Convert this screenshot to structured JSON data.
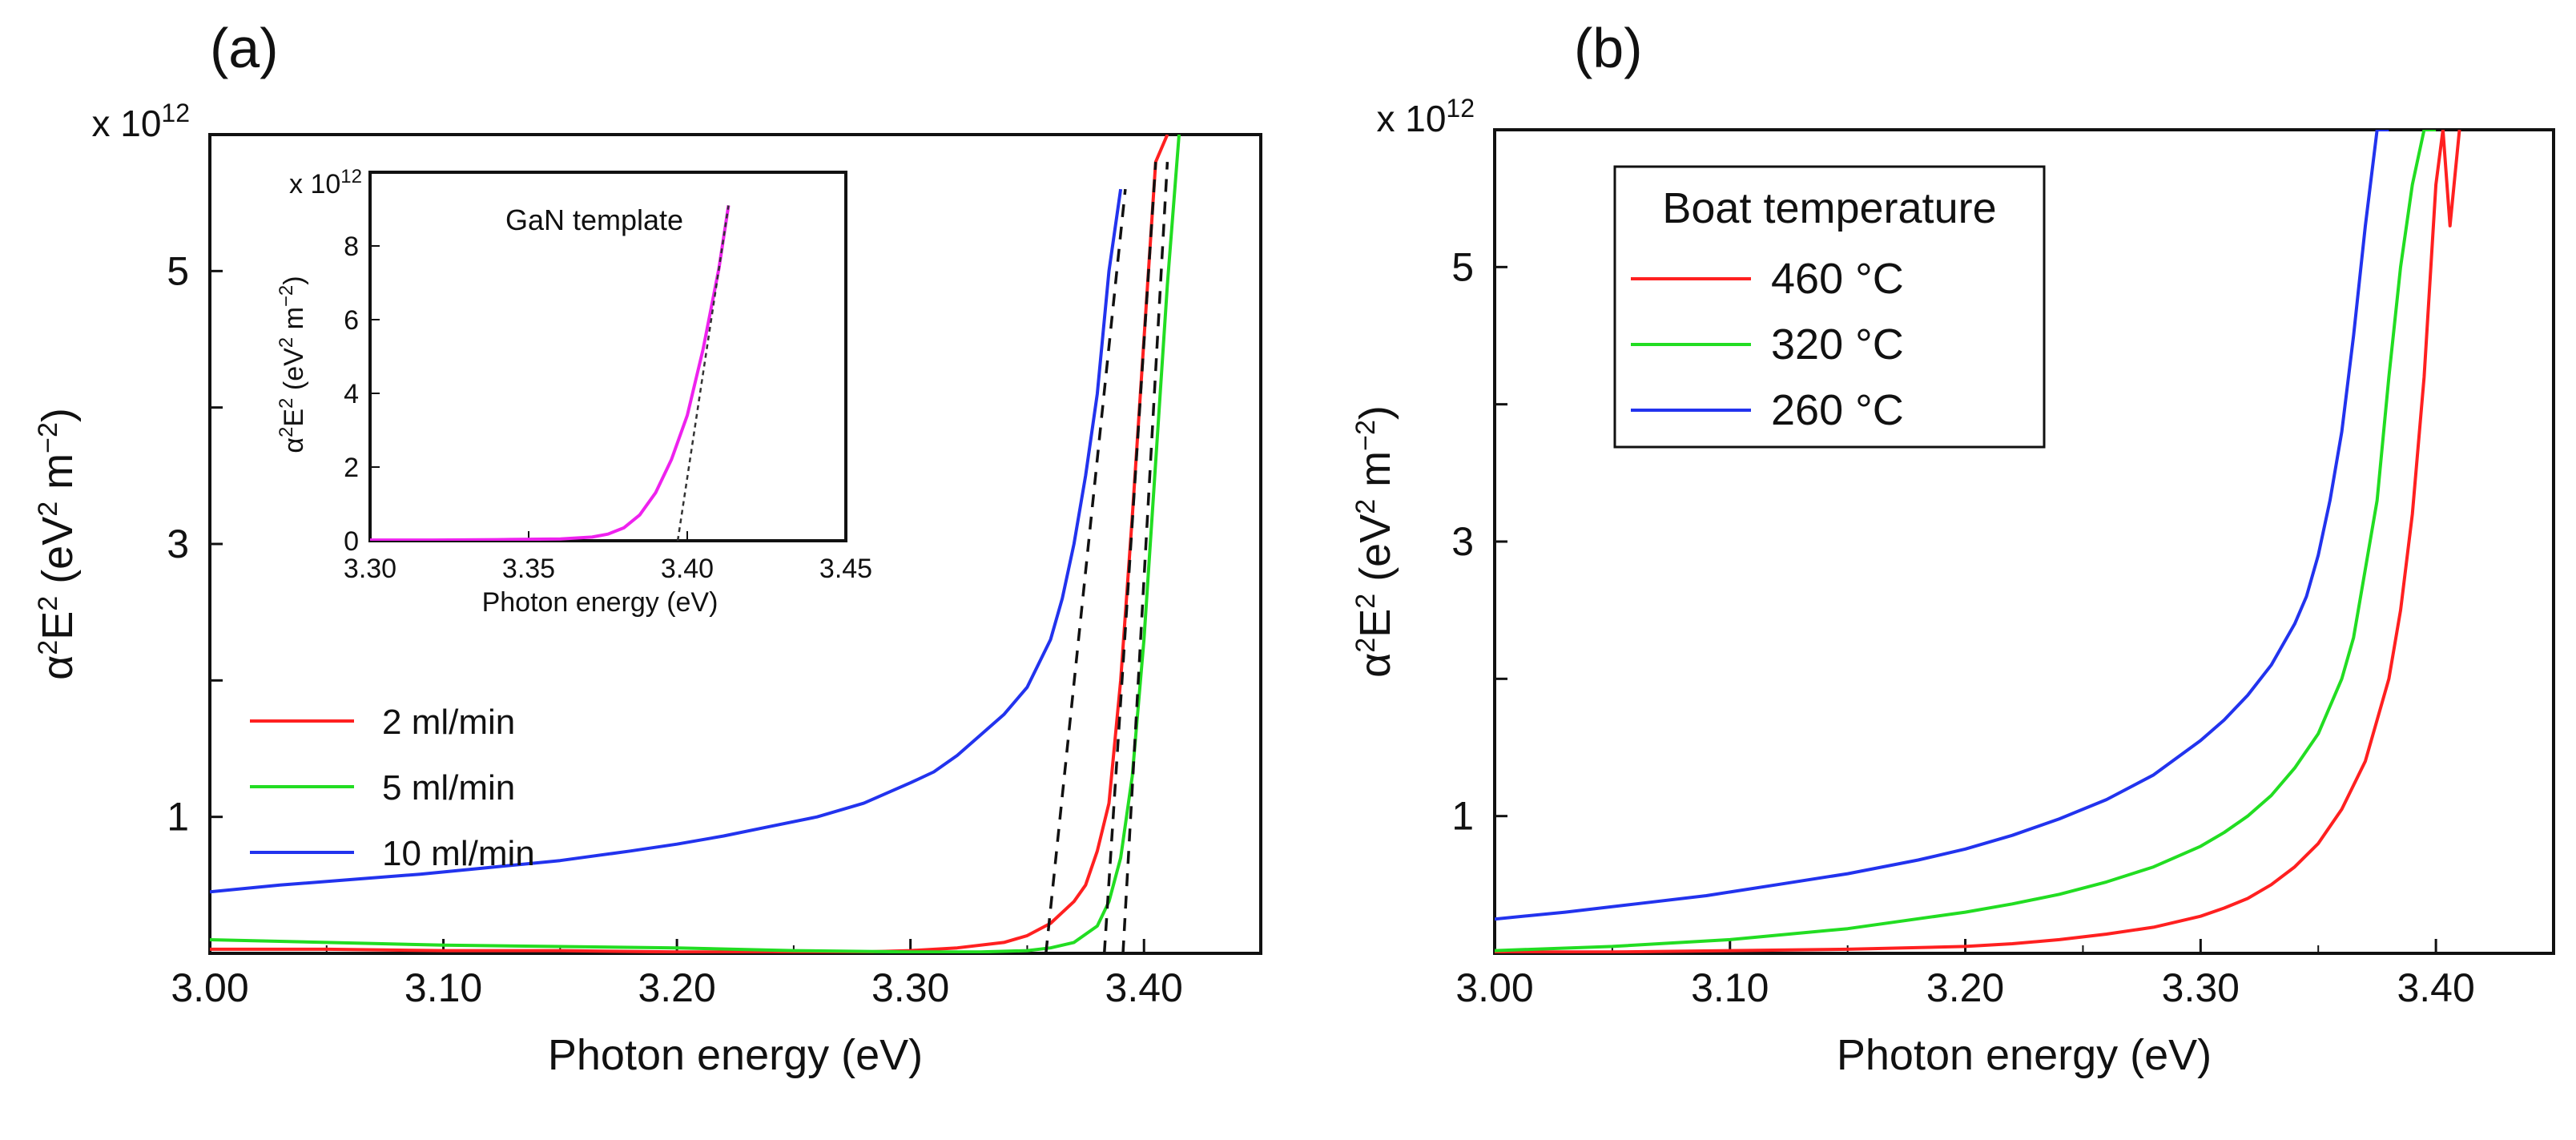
{
  "chart_data": [
    {
      "panel": "a",
      "type": "line",
      "panel_label": "(a)",
      "xlabel": "Photon energy (eV)",
      "ylabel": [
        "α",
        "2",
        "E",
        "2",
        " (eV",
        "2",
        " m",
        "−2",
        ")"
      ],
      "y_multiplier": {
        "base": "x 10",
        "exp": "12"
      },
      "xlim": [
        3.0,
        3.45
      ],
      "ylim": [
        0,
        6
      ],
      "xticks": [
        "3.00",
        "3.10",
        "3.20",
        "3.30",
        "3.40"
      ],
      "yticks": [
        "1",
        "3",
        "5"
      ],
      "legend": {
        "position": "lower-left",
        "entries": [
          "2 ml/min",
          "5 ml/min",
          "10 ml/min"
        ]
      },
      "series": [
        {
          "name": "2 ml/min",
          "color": "#ff2020",
          "x": [
            3.0,
            3.05,
            3.1,
            3.15,
            3.2,
            3.25,
            3.28,
            3.3,
            3.32,
            3.34,
            3.35,
            3.36,
            3.37,
            3.375,
            3.38,
            3.385,
            3.39,
            3.395,
            3.4,
            3.405,
            3.41
          ],
          "y": [
            0.03,
            0.03,
            0.02,
            0.02,
            0.01,
            0.01,
            0.01,
            0.02,
            0.04,
            0.08,
            0.13,
            0.22,
            0.38,
            0.5,
            0.75,
            1.1,
            2.0,
            3.2,
            4.5,
            5.8,
            6.0
          ]
        },
        {
          "name": "5 ml/min",
          "color": "#22dd22",
          "x": [
            3.0,
            3.05,
            3.1,
            3.15,
            3.2,
            3.25,
            3.3,
            3.33,
            3.35,
            3.36,
            3.37,
            3.38,
            3.385,
            3.39,
            3.395,
            3.4,
            3.405,
            3.41,
            3.415
          ],
          "y": [
            0.1,
            0.08,
            0.06,
            0.05,
            0.04,
            0.02,
            0.01,
            0.01,
            0.02,
            0.04,
            0.08,
            0.2,
            0.38,
            0.7,
            1.3,
            2.3,
            3.6,
            4.9,
            6.0
          ]
        },
        {
          "name": "10 ml/min",
          "color": "#2233ee",
          "x": [
            3.0,
            3.03,
            3.06,
            3.09,
            3.12,
            3.15,
            3.18,
            3.2,
            3.22,
            3.24,
            3.26,
            3.28,
            3.3,
            3.31,
            3.32,
            3.33,
            3.34,
            3.35,
            3.36,
            3.365,
            3.37,
            3.375,
            3.38,
            3.385,
            3.39
          ],
          "y": [
            0.45,
            0.5,
            0.54,
            0.58,
            0.63,
            0.68,
            0.75,
            0.8,
            0.86,
            0.93,
            1.0,
            1.1,
            1.25,
            1.33,
            1.45,
            1.6,
            1.75,
            1.95,
            2.3,
            2.6,
            3.0,
            3.5,
            4.1,
            5.0,
            5.6
          ]
        }
      ],
      "fit_lines": [
        {
          "x": [
            3.358,
            3.392
          ],
          "y": [
            0,
            5.6
          ]
        },
        {
          "x": [
            3.383,
            3.405
          ],
          "y": [
            0,
            5.8
          ]
        },
        {
          "x": [
            3.391,
            3.41
          ],
          "y": [
            0,
            5.8
          ]
        }
      ],
      "inset": {
        "title": "GaN template",
        "xlabel": "Photon energy (eV)",
        "ylabel": [
          "α",
          "2",
          "E",
          "2",
          " (eV",
          "2",
          " m",
          "−2",
          ")"
        ],
        "y_multiplier": {
          "base": "x 10",
          "exp": "12"
        },
        "xlim": [
          3.3,
          3.45
        ],
        "ylim": [
          0,
          10
        ],
        "xticks": [
          "3.30",
          "3.35",
          "3.40",
          "3.45"
        ],
        "yticks": [
          "0",
          "2",
          "4",
          "6",
          "8"
        ],
        "series": [
          {
            "name": "GaN template",
            "color": "#ee22ee",
            "x": [
              3.3,
              3.32,
              3.34,
              3.36,
              3.37,
              3.375,
              3.38,
              3.385,
              3.39,
              3.395,
              3.4,
              3.405,
              3.41,
              3.413
            ],
            "y": [
              0.02,
              0.02,
              0.03,
              0.05,
              0.1,
              0.18,
              0.35,
              0.7,
              1.3,
              2.2,
              3.4,
              5.2,
              7.4,
              9.1
            ]
          }
        ],
        "fit_line": {
          "x": [
            3.397,
            3.413
          ],
          "y": [
            0,
            9.1
          ]
        }
      }
    },
    {
      "panel": "b",
      "type": "line",
      "panel_label": "(b)",
      "xlabel": "Photon energy (eV)",
      "ylabel": [
        "α",
        "2",
        "E",
        "2",
        " (eV",
        "2",
        " m",
        "−2",
        ")"
      ],
      "y_multiplier": {
        "base": "x 10",
        "exp": "12"
      },
      "xlim": [
        3.0,
        3.45
      ],
      "ylim": [
        0,
        6
      ],
      "xticks": [
        "3.00",
        "3.10",
        "3.20",
        "3.30",
        "3.40"
      ],
      "yticks": [
        "1",
        "3",
        "5"
      ],
      "legend": {
        "position": "top-left",
        "title": "Boat temperature",
        "entries": [
          "460 °C",
          "320 °C",
          "260 °C"
        ]
      },
      "series": [
        {
          "name": "460 °C",
          "color": "#ff2020",
          "x": [
            3.0,
            3.05,
            3.1,
            3.15,
            3.2,
            3.22,
            3.24,
            3.26,
            3.28,
            3.3,
            3.31,
            3.32,
            3.33,
            3.34,
            3.35,
            3.36,
            3.37,
            3.38,
            3.385,
            3.39,
            3.395,
            3.4,
            3.403,
            3.406,
            3.41
          ],
          "y": [
            0.01,
            0.01,
            0.02,
            0.03,
            0.05,
            0.07,
            0.1,
            0.14,
            0.19,
            0.27,
            0.33,
            0.4,
            0.5,
            0.63,
            0.8,
            1.05,
            1.4,
            2.0,
            2.5,
            3.2,
            4.2,
            5.6,
            6.0,
            5.3,
            6.0
          ]
        },
        {
          "name": "320 °C",
          "color": "#22dd22",
          "x": [
            3.0,
            3.05,
            3.1,
            3.15,
            3.2,
            3.22,
            3.24,
            3.26,
            3.28,
            3.3,
            3.31,
            3.32,
            3.33,
            3.34,
            3.35,
            3.36,
            3.365,
            3.37,
            3.375,
            3.38,
            3.385,
            3.39,
            3.395,
            3.4
          ],
          "y": [
            0.02,
            0.05,
            0.1,
            0.18,
            0.3,
            0.36,
            0.43,
            0.52,
            0.63,
            0.78,
            0.88,
            1.0,
            1.15,
            1.35,
            1.6,
            2.0,
            2.3,
            2.8,
            3.3,
            4.2,
            5.0,
            5.6,
            6.0,
            6.0
          ]
        },
        {
          "name": "260 °C",
          "color": "#2233ee",
          "x": [
            3.0,
            3.03,
            3.06,
            3.09,
            3.12,
            3.15,
            3.18,
            3.2,
            3.22,
            3.24,
            3.26,
            3.28,
            3.3,
            3.31,
            3.32,
            3.33,
            3.34,
            3.345,
            3.35,
            3.355,
            3.36,
            3.365,
            3.37,
            3.375,
            3.38
          ],
          "y": [
            0.25,
            0.3,
            0.36,
            0.42,
            0.5,
            0.58,
            0.68,
            0.76,
            0.86,
            0.98,
            1.12,
            1.3,
            1.55,
            1.7,
            1.88,
            2.1,
            2.4,
            2.6,
            2.9,
            3.3,
            3.8,
            4.5,
            5.3,
            6.0,
            6.0
          ]
        }
      ]
    }
  ]
}
